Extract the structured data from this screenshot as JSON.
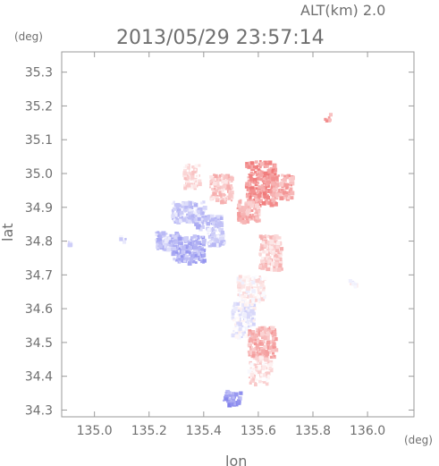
{
  "chart_data": {
    "type": "scatter",
    "title": "2013/05/29 23:57:14",
    "subtitle": "ALT(km)  2.0",
    "xlabel": "lon",
    "ylabel": "lat",
    "x_unit": "(deg)",
    "y_unit": "(deg)",
    "xlim": [
      134.88,
      136.17
    ],
    "ylim": [
      34.28,
      35.36
    ],
    "xticks": [
      "135.0",
      "135.2",
      "135.4",
      "135.6",
      "135.8",
      "136.0"
    ],
    "xtick_values": [
      135.0,
      135.2,
      135.4,
      135.6,
      135.8,
      136.0
    ],
    "yticks": [
      "34.3",
      "34.4",
      "34.5",
      "34.6",
      "34.7",
      "34.8",
      "34.9",
      "35.0",
      "35.1",
      "35.2",
      "35.3"
    ],
    "ytick_values": [
      34.3,
      34.4,
      34.5,
      34.6,
      34.7,
      34.8,
      34.9,
      35.0,
      35.1,
      35.2,
      35.3
    ],
    "grid": false,
    "colors": {
      "positive": "#f08c8c",
      "negative": "#8c8cf0",
      "neutral": "#f4e8ec",
      "frame": "#9a9a9a",
      "text": "#6f6f6f"
    },
    "regions": [
      {
        "lon": [
          135.32,
          135.38
        ],
        "lat": [
          34.96,
          35.03
        ],
        "value": 0.25
      },
      {
        "lon": [
          135.42,
          135.5
        ],
        "lat": [
          34.92,
          35.0
        ],
        "value": 0.4
      },
      {
        "lon": [
          135.55,
          135.66
        ],
        "lat": [
          34.91,
          35.04
        ],
        "value": 0.75
      },
      {
        "lon": [
          135.64,
          135.72
        ],
        "lat": [
          34.93,
          35.0
        ],
        "value": 0.6
      },
      {
        "lon": [
          135.52,
          135.6
        ],
        "lat": [
          34.86,
          34.93
        ],
        "value": 0.5
      },
      {
        "lon": [
          135.28,
          135.4
        ],
        "lat": [
          34.86,
          34.92
        ],
        "value": -0.35
      },
      {
        "lon": [
          135.36,
          135.46
        ],
        "lat": [
          34.84,
          34.88
        ],
        "value": -0.45
      },
      {
        "lon": [
          135.22,
          135.3
        ],
        "lat": [
          34.78,
          34.83
        ],
        "value": -0.4
      },
      {
        "lon": [
          135.28,
          135.4
        ],
        "lat": [
          34.74,
          34.82
        ],
        "value": -0.55
      },
      {
        "lon": [
          135.41,
          135.47
        ],
        "lat": [
          34.79,
          34.84
        ],
        "value": -0.3
      },
      {
        "lon": [
          135.52,
          135.62
        ],
        "lat": [
          34.62,
          34.7
        ],
        "value": 0.1
      },
      {
        "lon": [
          135.5,
          135.58
        ],
        "lat": [
          34.52,
          34.62
        ],
        "value": -0.1
      },
      {
        "lon": [
          135.56,
          135.66
        ],
        "lat": [
          34.46,
          34.55
        ],
        "value": 0.55
      },
      {
        "lon": [
          135.56,
          135.64
        ],
        "lat": [
          34.38,
          34.46
        ],
        "value": 0.2
      },
      {
        "lon": [
          135.6,
          135.68
        ],
        "lat": [
          34.72,
          34.82
        ],
        "value": 0.35
      },
      {
        "lon": [
          135.47,
          135.53
        ],
        "lat": [
          34.32,
          34.36
        ],
        "value": -0.7
      },
      {
        "lon": [
          134.89,
          134.91
        ],
        "lat": [
          34.79,
          34.81
        ],
        "value": -0.2
      },
      {
        "lon": [
          135.09,
          135.11
        ],
        "lat": [
          34.8,
          34.82
        ],
        "value": -0.25
      },
      {
        "lon": [
          135.84,
          135.86
        ],
        "lat": [
          35.16,
          35.18
        ],
        "value": 0.7
      },
      {
        "lon": [
          135.93,
          135.95
        ],
        "lat": [
          34.67,
          34.69
        ],
        "value": -0.05
      }
    ]
  }
}
